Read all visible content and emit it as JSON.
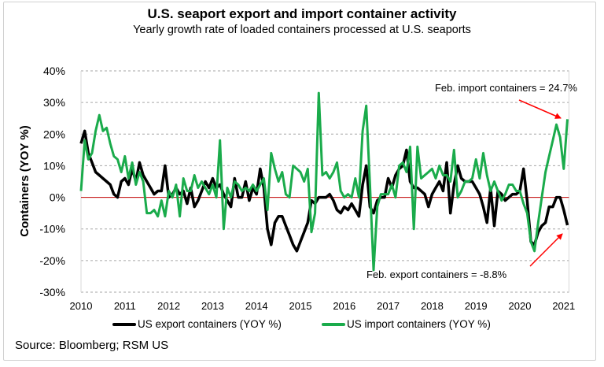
{
  "colors": {
    "export": "#000000",
    "import": "#1aab4b",
    "zero_line": "#c00000",
    "grid": "#a6a6a6",
    "arrow": "#ff0000"
  },
  "chart_data": {
    "type": "line",
    "title": "U.S. seaport export and import container activity",
    "subtitle": "Yearly growth rate of loaded containers processed at U.S. seaports",
    "ylabel": "Containers (YOY %)",
    "xlabel": "",
    "ylim": [
      -30,
      40
    ],
    "yticks": [
      -30,
      -20,
      -10,
      0,
      10,
      20,
      30,
      40
    ],
    "ytick_labels": [
      "-30%",
      "-20%",
      "-10%",
      "0%",
      "10%",
      "20%",
      "30%",
      "40%"
    ],
    "xtick_labels": [
      "2010",
      "2011",
      "2012",
      "2013",
      "2014",
      "2015",
      "2016",
      "2017",
      "2018",
      "2019",
      "2020",
      "2021"
    ],
    "start": "2010-01",
    "frequency": "monthly",
    "grid": "horizontal dashed",
    "legend_position": "bottom",
    "series": [
      {
        "name": "US export containers (YOY %)",
        "color": "#000000",
        "values": [
          17,
          21,
          14,
          11,
          8,
          7,
          6,
          5,
          4,
          1,
          0,
          5,
          6,
          4,
          9,
          5,
          11,
          7,
          5,
          3,
          1,
          2,
          2,
          10,
          0,
          1,
          3,
          1,
          2,
          -2,
          3,
          -3,
          -1,
          2,
          5,
          3,
          6,
          3,
          4,
          1,
          -1,
          -3,
          6,
          0,
          0,
          5,
          -1,
          3,
          1,
          9,
          3,
          -10,
          -15,
          -8,
          -6,
          -6,
          -9,
          -12,
          -15,
          -17,
          -14,
          -11,
          -8,
          -1,
          -2,
          0,
          0,
          0,
          1,
          -1,
          -4,
          -5,
          -3,
          -4,
          -2,
          -4,
          -6,
          4,
          10,
          -3,
          -5,
          -1,
          0,
          0,
          6,
          3,
          7,
          9,
          10,
          15,
          5,
          3,
          3,
          2,
          1,
          -3,
          1,
          3,
          5,
          2,
          11,
          -5,
          4,
          10,
          6,
          5,
          5,
          5,
          3,
          1,
          -3,
          -8,
          3,
          -9,
          2,
          1,
          -1,
          0,
          1,
          1,
          2,
          9,
          -1,
          -14,
          -15,
          -11,
          -9,
          -8,
          -3,
          -3,
          0,
          0,
          -4,
          -8.8
        ]
      },
      {
        "name": "US import containers (YOY %)",
        "color": "#1aab4b",
        "values": [
          2,
          18,
          12,
          14,
          21,
          26,
          21,
          22,
          17,
          13,
          12,
          8,
          13,
          6,
          11,
          4,
          8,
          5,
          -5,
          -5,
          -4,
          -6,
          -1,
          -6,
          2,
          0,
          4,
          -6,
          6,
          2,
          2,
          7,
          3,
          5,
          3,
          1,
          4,
          0,
          18,
          -10,
          3,
          0,
          5,
          4,
          2,
          3,
          2,
          4,
          2,
          4,
          6,
          -4,
          14,
          9,
          5,
          8,
          1,
          0,
          10,
          9,
          8,
          5,
          9,
          -11,
          -5,
          33,
          7,
          8,
          6,
          8,
          11,
          2,
          0,
          1,
          0,
          6,
          0,
          21,
          29,
          4,
          -23,
          -3,
          1,
          1,
          1,
          4,
          0,
          10,
          11,
          8,
          16,
          -10,
          16,
          6,
          7,
          8,
          9,
          6,
          10,
          7,
          7,
          5,
          15,
          0,
          2,
          5,
          5,
          6,
          12,
          6,
          14,
          7,
          2,
          5,
          2,
          -1,
          1,
          4,
          4,
          2,
          2,
          -2,
          -5,
          -14,
          -17,
          -8,
          0,
          8,
          13,
          18,
          23,
          19,
          9,
          24.7
        ]
      }
    ],
    "annotations": [
      {
        "text": "Feb. import containers = 24.7%",
        "series": "import",
        "date": "2021-02",
        "value": 24.7
      },
      {
        "text": "Feb. export containers = -8.8%",
        "series": "export",
        "date": "2021-02",
        "value": -8.8
      }
    ]
  },
  "legend": {
    "export_label": "US export containers (YOY %)",
    "import_label": "US import containers (YOY %)"
  },
  "source": "Source: Bloomberg; RSM US"
}
